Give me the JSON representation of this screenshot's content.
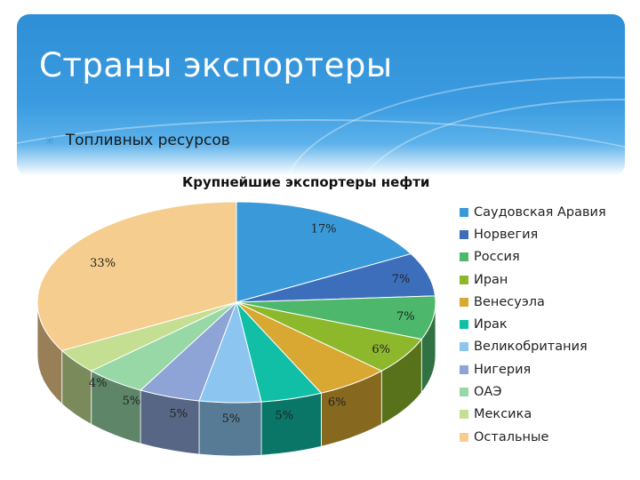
{
  "slide": {
    "title": "Страны экспортеры",
    "bullet": "Топливных ресурсов"
  },
  "colors": {
    "header": "#3a9be0",
    "bullet_marker": "#4a9bd6"
  },
  "chart_data": {
    "type": "pie",
    "title": "Крупнейшие экспортеры нефти",
    "legend_position": "right",
    "three_d": true,
    "slices": [
      {
        "label": "Саудовская Аравия",
        "value": 17,
        "value_label": "17%",
        "color": "#3a9ad9"
      },
      {
        "label": "Норвегия",
        "value": 7,
        "value_label": "7%",
        "color": "#3d6ebc"
      },
      {
        "label": "Россия",
        "value": 7,
        "value_label": "7%",
        "color": "#4db86b"
      },
      {
        "label": "Иран",
        "value": 6,
        "value_label": "6%",
        "color": "#8db82c"
      },
      {
        "label": "Венесуэла",
        "value": 6,
        "value_label": "6%",
        "color": "#d9a832"
      },
      {
        "label": "Ирак",
        "value": 5,
        "value_label": "5%",
        "color": "#10bfa6"
      },
      {
        "label": "Великобритания",
        "value": 5,
        "value_label": "5%",
        "color": "#8cc6f0"
      },
      {
        "label": "Нигерия",
        "value": 5,
        "value_label": "5%",
        "color": "#8ea4d6"
      },
      {
        "label": "ОАЭ",
        "value": 5,
        "value_label": "5%",
        "color": "#98d7a6"
      },
      {
        "label": "Мексика",
        "value": 4,
        "value_label": "4%",
        "color": "#c4de92"
      },
      {
        "label": "Остальные",
        "value": 33,
        "value_label": "33%",
        "color": "#f5cd8e"
      }
    ]
  }
}
